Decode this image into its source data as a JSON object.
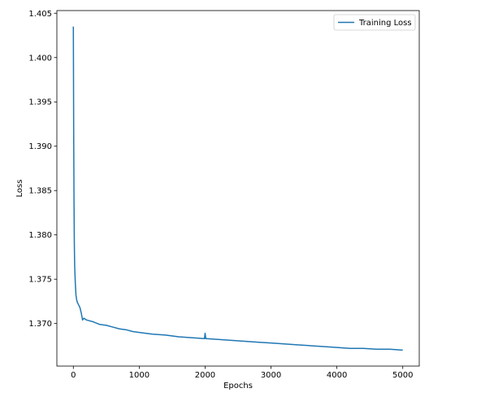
{
  "chart_data": {
    "type": "line",
    "title": "",
    "xlabel": "Epochs",
    "ylabel": "Loss",
    "xlim": [
      -250,
      5250
    ],
    "ylim": [
      1.3652,
      1.4053
    ],
    "x_ticks": [
      0,
      1000,
      2000,
      3000,
      4000,
      5000
    ],
    "x_tick_labels": [
      "0",
      "1000",
      "2000",
      "3000",
      "4000",
      "5000"
    ],
    "y_ticks": [
      1.37,
      1.375,
      1.38,
      1.385,
      1.39,
      1.395,
      1.4,
      1.405
    ],
    "y_tick_labels": [
      "1.370",
      "1.375",
      "1.380",
      "1.385",
      "1.390",
      "1.395",
      "1.400",
      "1.405"
    ],
    "grid": false,
    "legend_position": "top-right",
    "series": [
      {
        "name": "Training Loss",
        "color": "#1f77b4",
        "x": [
          0,
          5,
          10,
          15,
          20,
          30,
          40,
          50,
          60,
          80,
          100,
          120,
          140,
          160,
          180,
          200,
          250,
          300,
          400,
          500,
          600,
          700,
          800,
          900,
          1000,
          1200,
          1400,
          1600,
          1800,
          1990,
          2000,
          2010,
          2200,
          2400,
          2600,
          2800,
          3000,
          3200,
          3400,
          3600,
          3800,
          4000,
          4200,
          4400,
          4600,
          4800,
          5000
        ],
        "y": [
          1.4035,
          1.392,
          1.384,
          1.379,
          1.3765,
          1.3745,
          1.3732,
          1.3727,
          1.3724,
          1.3721,
          1.3718,
          1.3712,
          1.3704,
          1.3706,
          1.3705,
          1.3704,
          1.3703,
          1.3702,
          1.3699,
          1.3698,
          1.3696,
          1.3694,
          1.3693,
          1.3691,
          1.369,
          1.3688,
          1.3687,
          1.3685,
          1.3684,
          1.3683,
          1.3689,
          1.3683,
          1.3682,
          1.3681,
          1.368,
          1.3679,
          1.3678,
          1.3677,
          1.3676,
          1.3675,
          1.3674,
          1.3673,
          1.3672,
          1.3672,
          1.3671,
          1.3671,
          1.367
        ]
      }
    ]
  }
}
